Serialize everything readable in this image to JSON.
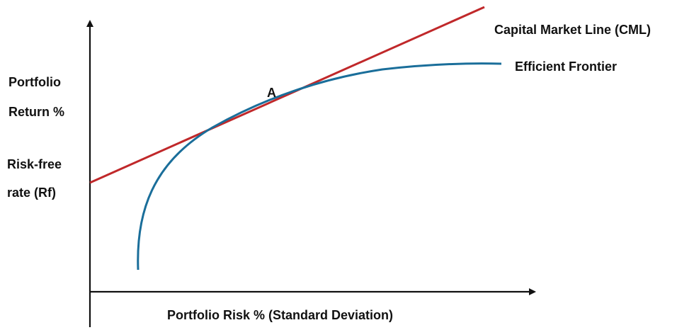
{
  "labels": {
    "y_axis_line1": "Portfolio",
    "y_axis_line2": "Return %",
    "rf_line1": "Risk-free",
    "rf_line2": "rate (Rf)",
    "x_axis": "Portfolio Risk % (Standard Deviation)",
    "cml": "Capital Market Line (CML)",
    "frontier": "Efficient Frontier",
    "tangency_point": "A"
  },
  "colors": {
    "axis": "#111111",
    "cml": "#c0282a",
    "frontier": "#1a6e9a",
    "text": "#111111"
  }
}
